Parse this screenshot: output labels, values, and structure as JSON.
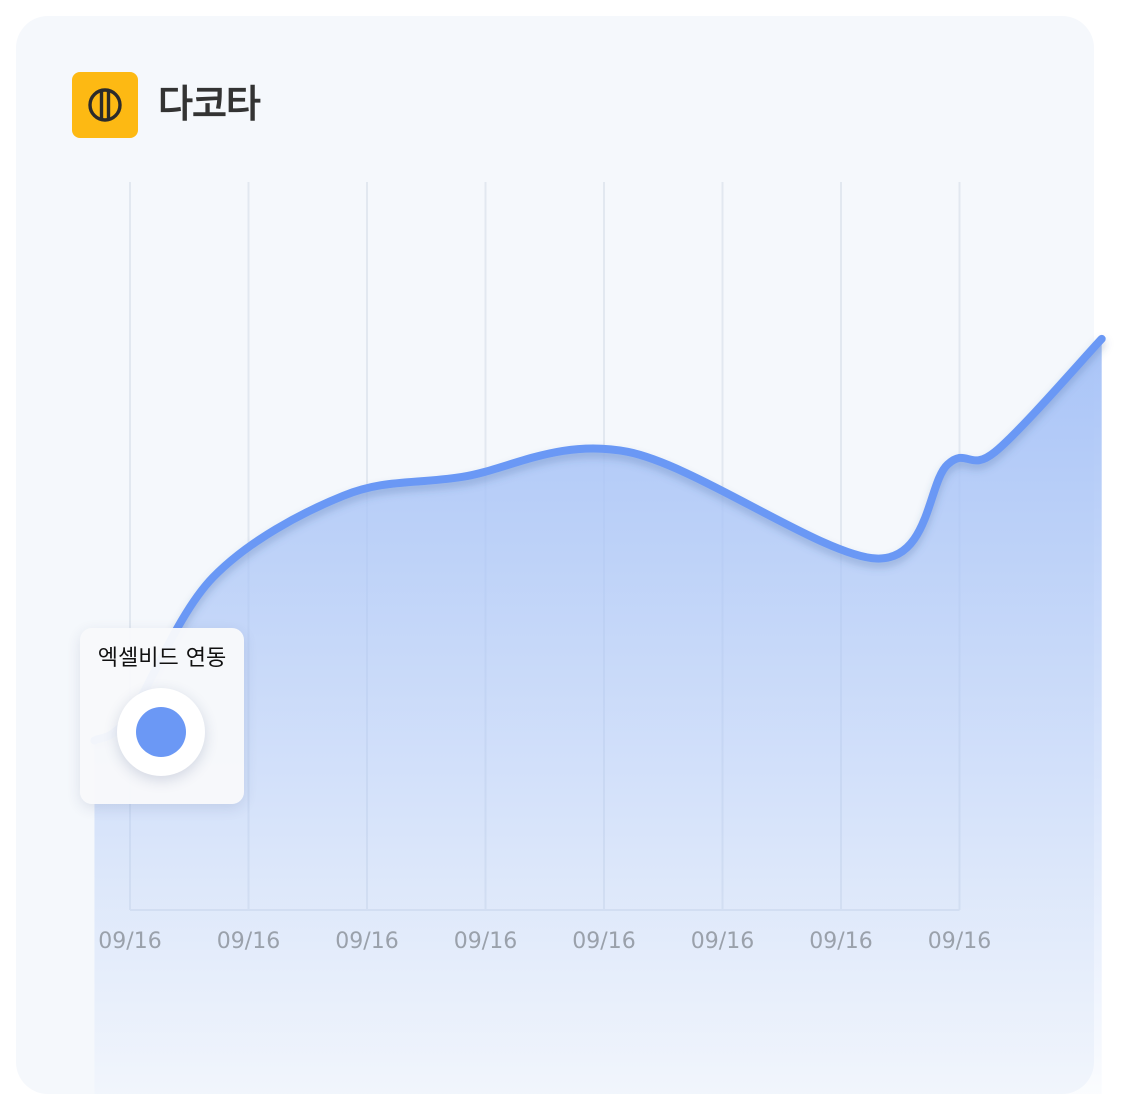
{
  "brand": {
    "name": "다코타",
    "logo_icon": "dakota-logo-icon",
    "logo_color": "#fdb913"
  },
  "tooltip": {
    "label": "엑셀비드 연동"
  },
  "colors": {
    "line": "#6b98f5",
    "area_top": "#a9c4f7",
    "grid": "#e2e8f0",
    "tick_text": "#9aa1ab",
    "card_bg": "#f5f8fc"
  },
  "chart_data": {
    "type": "area",
    "title": "",
    "xlabel": "",
    "ylabel": "",
    "categories": [
      "09/16",
      "09/16",
      "09/16",
      "09/16",
      "09/16",
      "09/16",
      "09/16",
      "09/16"
    ],
    "grid": "vertical",
    "y_axis_visible": false,
    "series": [
      {
        "values": [
          0.4,
          0.8,
          3.0,
          4.3,
          4.6,
          5.0,
          3.3,
          4.8,
          5.0,
          6.8
        ],
        "x": [
          -0.3,
          0.0,
          0.7,
          1.8,
          2.8,
          4.2,
          6.3,
          6.9,
          7.3,
          8.2
        ]
      }
    ],
    "ylim": [
      -2.3,
      9.3
    ],
    "annotation": {
      "category_index": 0,
      "label": "엑셀비드 연동"
    }
  }
}
